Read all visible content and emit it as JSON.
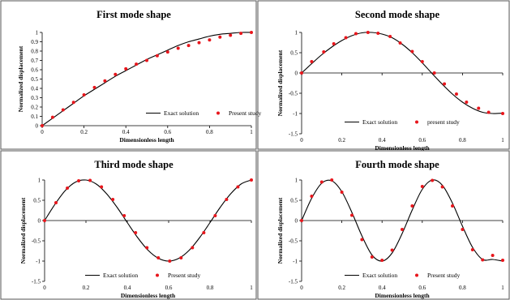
{
  "figure": {
    "colors": {
      "exact": "#000000",
      "study": "#e8161c",
      "frame": "#555555",
      "background": "#ffffff"
    }
  },
  "chart_data": [
    {
      "type": "line",
      "title": "First mode shape",
      "xlabel": "Dimensionless length",
      "ylabel": "Normalized displacement",
      "xlim": [
        0,
        1
      ],
      "ylim": [
        0,
        1
      ],
      "xticks": [
        0,
        0.2,
        0.4,
        0.6,
        0.8,
        1
      ],
      "xtick_labels": [
        "0",
        "0.2",
        "0.4",
        "0.6",
        "0.8",
        "1"
      ],
      "yticks": [
        0,
        0.1,
        0.2,
        0.3,
        0.4,
        0.5,
        0.6,
        0.7,
        0.8,
        0.9,
        1
      ],
      "ytick_labels": [
        "0",
        "0.1",
        "0.2",
        "0.3",
        "0.4",
        "0.5",
        "0.6",
        "0.7",
        "0.8",
        "0.9",
        "1"
      ],
      "legend_position": "bottom-right",
      "series": [
        {
          "name": "Exact solution",
          "style": "line",
          "x": [
            0,
            0.05,
            0.1,
            0.15,
            0.2,
            0.25,
            0.3,
            0.35,
            0.4,
            0.45,
            0.5,
            0.55,
            0.6,
            0.65,
            0.7,
            0.75,
            0.8,
            0.85,
            0.9,
            0.95,
            1
          ],
          "y": [
            0,
            0.08,
            0.16,
            0.24,
            0.32,
            0.39,
            0.46,
            0.53,
            0.59,
            0.65,
            0.71,
            0.76,
            0.81,
            0.86,
            0.9,
            0.93,
            0.96,
            0.98,
            0.99,
            1,
            1
          ]
        },
        {
          "name": "Present study",
          "style": "markers",
          "x": [
            0,
            0.05,
            0.1,
            0.15,
            0.2,
            0.25,
            0.3,
            0.35,
            0.4,
            0.45,
            0.5,
            0.55,
            0.6,
            0.65,
            0.7,
            0.75,
            0.8,
            0.85,
            0.9,
            0.95,
            1
          ],
          "y": [
            0,
            0.09,
            0.17,
            0.25,
            0.33,
            0.41,
            0.48,
            0.55,
            0.61,
            0.66,
            0.7,
            0.75,
            0.79,
            0.83,
            0.86,
            0.89,
            0.92,
            0.95,
            0.97,
            0.99,
            1
          ]
        }
      ]
    },
    {
      "type": "line",
      "title": "Second mode shape",
      "xlabel": "Dimensionless length",
      "ylabel": "Normalized displacement",
      "xlim": [
        0,
        1
      ],
      "ylim": [
        -1.5,
        1
      ],
      "xticks": [
        0,
        0.2,
        0.4,
        0.6,
        0.8,
        1
      ],
      "xtick_labels": [
        "0",
        "0.2",
        "0.4",
        "0.6",
        "0.8",
        "1"
      ],
      "yticks": [
        -1.5,
        -1,
        -0.5,
        0,
        0.5,
        1
      ],
      "ytick_labels": [
        "-1.5",
        "-1",
        "-0.5",
        "0",
        "0.5",
        "1"
      ],
      "legend_position": "bottom",
      "series": [
        {
          "name": "Exact solution",
          "style": "line",
          "x": [
            0,
            0.05,
            0.1,
            0.15,
            0.2,
            0.25,
            0.3,
            0.35,
            0.4,
            0.45,
            0.5,
            0.55,
            0.6,
            0.65,
            0.7,
            0.75,
            0.8,
            0.85,
            0.9,
            0.95,
            1
          ],
          "y": [
            0,
            0.23,
            0.45,
            0.64,
            0.8,
            0.92,
            0.99,
            1,
            0.96,
            0.87,
            0.71,
            0.5,
            0.25,
            -0.02,
            -0.28,
            -0.52,
            -0.72,
            -0.87,
            -0.97,
            -1.0,
            -0.99
          ]
        },
        {
          "name": "present study",
          "style": "markers",
          "x": [
            0,
            0.05,
            0.11,
            0.16,
            0.22,
            0.27,
            0.33,
            0.38,
            0.44,
            0.49,
            0.55,
            0.6,
            0.66,
            0.71,
            0.77,
            0.82,
            0.88,
            0.93,
            1
          ],
          "y": [
            0,
            0.28,
            0.52,
            0.72,
            0.87,
            0.97,
            1,
            0.98,
            0.9,
            0.74,
            0.53,
            0.28,
            0.0,
            -0.27,
            -0.52,
            -0.72,
            -0.87,
            -0.97,
            -1.0
          ]
        }
      ]
    },
    {
      "type": "line",
      "title": "Third mode shape",
      "xlabel": "Dimensionless length",
      "ylabel": "Normalized displacement",
      "xlim": [
        0,
        1
      ],
      "ylim": [
        -1.5,
        1
      ],
      "xticks": [
        0,
        0.2,
        0.4,
        0.6,
        0.8,
        1
      ],
      "xtick_labels": [
        "0",
        "0.2",
        "0.4",
        "0.6",
        "0.8",
        "1"
      ],
      "yticks": [
        -1.5,
        -1,
        -0.5,
        0,
        0.5,
        1
      ],
      "ytick_labels": [
        "-1.5",
        "-1",
        "-0.5",
        "0",
        "0.5",
        "1"
      ],
      "legend_position": "bottom",
      "series": [
        {
          "name": "Exact solution",
          "style": "line",
          "x": [
            0,
            0.05,
            0.1,
            0.15,
            0.2,
            0.25,
            0.3,
            0.35,
            0.4,
            0.45,
            0.5,
            0.55,
            0.6,
            0.65,
            0.7,
            0.75,
            0.8,
            0.85,
            0.9,
            0.95,
            1
          ],
          "y": [
            0,
            0.4,
            0.74,
            0.95,
            1,
            0.9,
            0.66,
            0.33,
            -0.05,
            -0.42,
            -0.73,
            -0.93,
            -1,
            -0.93,
            -0.73,
            -0.42,
            -0.05,
            0.33,
            0.66,
            0.9,
            1
          ]
        },
        {
          "name": "Present study",
          "style": "markers",
          "x": [
            0,
            0.055,
            0.11,
            0.165,
            0.22,
            0.275,
            0.33,
            0.385,
            0.44,
            0.495,
            0.55,
            0.605,
            0.66,
            0.715,
            0.77,
            0.825,
            0.88,
            0.935,
            1
          ],
          "y": [
            0,
            0.44,
            0.8,
            0.98,
            0.99,
            0.83,
            0.52,
            0.12,
            -0.3,
            -0.67,
            -0.92,
            -1,
            -0.92,
            -0.67,
            -0.3,
            0.12,
            0.52,
            0.83,
            1
          ]
        }
      ]
    },
    {
      "type": "line",
      "title": "Fourth mode shape",
      "xlabel": "Dimensionless length",
      "ylabel": "Normalized displacement",
      "xlim": [
        0,
        1
      ],
      "ylim": [
        -1.5,
        1
      ],
      "xticks": [
        0,
        0.2,
        0.4,
        0.6,
        0.8,
        1
      ],
      "xtick_labels": [
        "0",
        "0.2",
        "0.4",
        "0.6",
        "0.8",
        "1"
      ],
      "yticks": [
        -1.5,
        -1,
        -0.5,
        0,
        0.5,
        1
      ],
      "ytick_labels": [
        "-1.5",
        "-1",
        "-0.5",
        "0",
        "0.5",
        "1"
      ],
      "legend_position": "bottom",
      "series": [
        {
          "name": "Exact solution",
          "style": "line",
          "x": [
            0,
            0.05,
            0.1,
            0.15,
            0.2,
            0.25,
            0.3,
            0.35,
            0.4,
            0.45,
            0.5,
            0.55,
            0.6,
            0.65,
            0.7,
            0.75,
            0.8,
            0.85,
            0.9,
            0.95,
            1
          ],
          "y": [
            0,
            0.55,
            0.92,
            0.98,
            0.71,
            0.2,
            -0.38,
            -0.85,
            -1,
            -0.8,
            -0.32,
            0.26,
            0.77,
            1,
            0.87,
            0.43,
            -0.14,
            -0.66,
            -0.96,
            -0.96,
            -1
          ]
        },
        {
          "name": "Present study",
          "style": "markers",
          "x": [
            0,
            0.05,
            0.1,
            0.15,
            0.2,
            0.25,
            0.3,
            0.35,
            0.4,
            0.45,
            0.5,
            0.55,
            0.6,
            0.65,
            0.7,
            0.75,
            0.8,
            0.85,
            0.9,
            0.95,
            1
          ],
          "y": [
            0,
            0.6,
            0.95,
            1,
            0.7,
            0.13,
            -0.47,
            -0.9,
            -0.98,
            -0.73,
            -0.22,
            0.36,
            0.84,
            0.99,
            0.83,
            0.36,
            -0.22,
            -0.72,
            -0.97,
            -0.86,
            -0.98
          ]
        }
      ]
    }
  ]
}
